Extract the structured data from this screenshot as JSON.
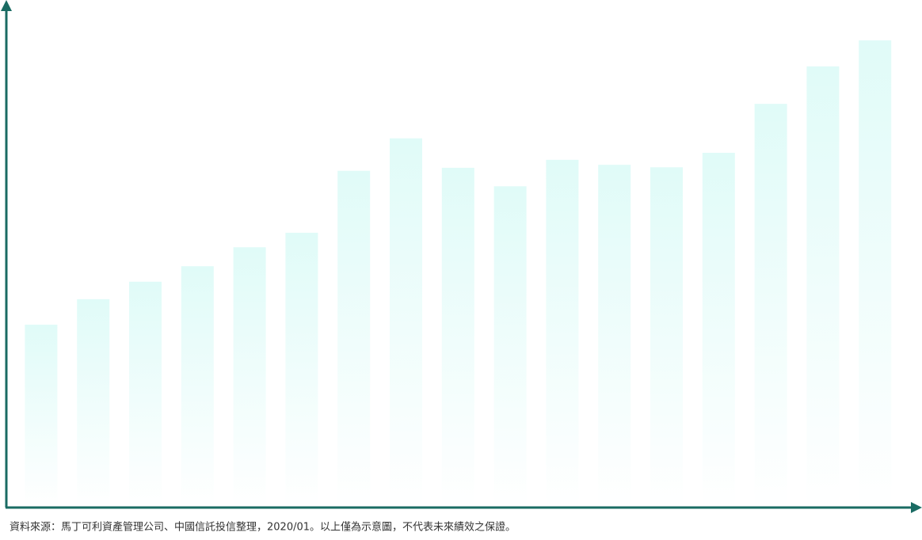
{
  "chart_data": {
    "type": "bar",
    "categories": [
      null,
      null,
      null,
      null,
      null,
      null,
      null,
      null,
      null,
      null,
      null,
      null,
      null,
      null,
      null,
      null,
      null
    ],
    "values": [
      36.6,
      41.7,
      45.2,
      48.3,
      52.1,
      55.0,
      67.4,
      73.9,
      68.0,
      64.3,
      69.6,
      68.6,
      68.1,
      71.0,
      80.8,
      88.3,
      93.5
    ],
    "color": "#e0fbf8",
    "axis_color": "#1a6b63",
    "ylim": [
      0,
      100
    ],
    "footnote": "資料來源：馬丁可利資產管理公司、中國信託投信整理，2020/01。以上僅為示意圖，不代表未來績效之保證。"
  }
}
